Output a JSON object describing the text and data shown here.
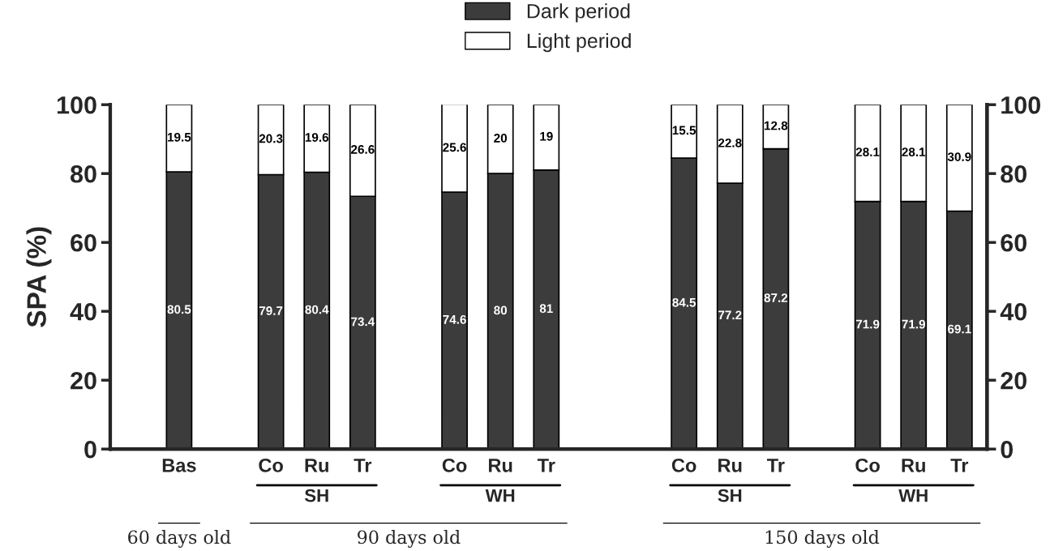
{
  "chart_data": {
    "type": "bar",
    "stacked": true,
    "ylabel": "SPA (%)",
    "categories": [
      "Bas",
      null,
      "Co",
      "Ru",
      "Tr",
      null,
      "Co",
      "Ru",
      "Tr",
      null,
      null,
      "Co",
      "Ru",
      "Tr",
      null,
      "Co",
      "Ru",
      "Tr"
    ],
    "series": [
      {
        "name": "Dark period",
        "color": "#3c3c3c",
        "values": [
          80.5,
          null,
          79.7,
          80.4,
          73.4,
          null,
          74.6,
          80,
          81,
          null,
          null,
          84.5,
          77.2,
          87.2,
          null,
          71.9,
          71.9,
          69.1
        ]
      },
      {
        "name": "Light period",
        "color": "#ffffff",
        "values": [
          19.5,
          null,
          20.3,
          19.6,
          26.6,
          null,
          25.6,
          20,
          19,
          null,
          null,
          15.5,
          22.8,
          12.8,
          null,
          28.1,
          28.1,
          30.9
        ]
      }
    ],
    "ylim": [
      0,
      100
    ],
    "yticks": [
      0,
      20,
      40,
      60,
      80,
      100
    ],
    "y2lim": [
      0,
      100
    ],
    "y2ticks": [
      0,
      20,
      40,
      60,
      80,
      100
    ],
    "data_labels": true,
    "legend": "top",
    "grid": false,
    "annotations": [
      "SH",
      "WH",
      "SH",
      "WH",
      "60 days old",
      "90 days old",
      "150 days old"
    ]
  }
}
